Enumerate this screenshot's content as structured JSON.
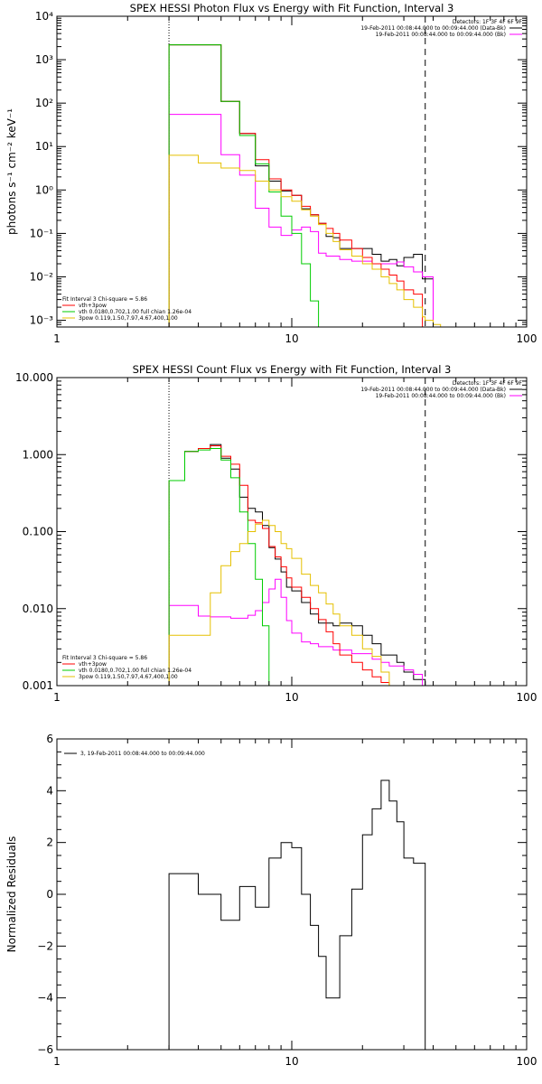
{
  "chart_data": [
    {
      "type": "line",
      "title": "SPEX HESSI Photon Flux vs Energy with Fit Function, Interval 3",
      "ylabel": "photons s⁻¹ cm⁻² keV⁻¹",
      "xlabel": "",
      "xscale": "log",
      "yscale": "log",
      "xlim": [
        1,
        100
      ],
      "ylim": [
        0.0007,
        10000
      ],
      "x_ticks": [
        1,
        10,
        100
      ],
      "x_tick_labels": [
        "1",
        "10",
        "100"
      ],
      "y_ticks": [
        0.001,
        0.01,
        0.1,
        1,
        10,
        100,
        1000,
        10000
      ],
      "y_tick_labels": [
        "10⁻³",
        "10⁻²",
        "10⁻¹",
        "10⁰",
        "10¹",
        "10²",
        "10³",
        "10⁴"
      ],
      "grid": false,
      "vlines": [
        {
          "x": 3.0,
          "style": "dotted"
        },
        {
          "x": 37.0,
          "style": "dashed"
        }
      ],
      "legend_top": {
        "placement": "top-right",
        "header": "Detectors: 1F 3F 4F 6F 9F",
        "entries": [
          {
            "label": "19-Feb-2011 00:08:44.000 to 00:09:44.000 (Data-Bk)",
            "color": "#000000"
          },
          {
            "label": "19-Feb-2011 00:08:44.000 to 00:09:44.000 (Bk)",
            "color": "#ff00ff"
          }
        ]
      },
      "legend_bottom": {
        "placement": "bottom-left",
        "header": "Fit Interval 3   Chi-square = 5.86",
        "entries": [
          {
            "label": "vth+3pow",
            "color": "#ff0000"
          },
          {
            "label": "vth 0.0180,0.702,1.00  full chian 1.26e-04",
            "color": "#00cc00"
          },
          {
            "label": "3pow 0.119,1.50,7.97,4.67,400,1.00",
            "color": "#e5c000"
          }
        ]
      },
      "bin_edges": [
        3.0,
        3.5,
        4.0,
        4.5,
        5.0,
        5.5,
        6.0,
        6.5,
        7.0,
        7.5,
        8.0,
        8.5,
        9.0,
        9.5,
        10.0,
        11.0,
        12.0,
        13.0,
        14.0,
        15.0,
        16.0,
        18.0,
        20.0,
        22.0,
        24.0,
        26.0,
        28.0,
        30.0,
        33.0,
        36.0,
        37.0,
        40.0,
        43.0
      ],
      "series": [
        {
          "name": "Data-Bk",
          "color": "#000000",
          "values": [
            2200,
            2200,
            2200,
            2200,
            110,
            110,
            20,
            20,
            3.6,
            3.6,
            1.6,
            1.6,
            0.95,
            0.95,
            0.75,
            0.37,
            0.27,
            0.17,
            0.085,
            0.08,
            0.045,
            0.045,
            0.045,
            0.033,
            0.023,
            0.025,
            0.018,
            0.028,
            0.033,
            0.009,
            0.009,
            null
          ]
        },
        {
          "name": "Bk",
          "color": "#ff00ff",
          "values": [
            55,
            55,
            55,
            55,
            6.5,
            6.5,
            2.2,
            2.2,
            0.38,
            0.38,
            0.14,
            0.14,
            0.09,
            0.09,
            0.12,
            0.14,
            0.11,
            0.035,
            0.03,
            0.03,
            0.025,
            0.023,
            0.023,
            0.02,
            0.02,
            0.02,
            0.022,
            0.017,
            0.013,
            0.01,
            0.01,
            null
          ]
        },
        {
          "name": "vth+3pow",
          "color": "#ff0000",
          "values": [
            2200,
            2200,
            2200,
            2200,
            110,
            110,
            20,
            20,
            5,
            5,
            1.8,
            1.8,
            1.0,
            1.0,
            0.75,
            0.42,
            0.27,
            0.17,
            0.13,
            0.1,
            0.07,
            0.045,
            0.028,
            0.02,
            0.015,
            0.011,
            0.008,
            0.005,
            0.004,
            null,
            null,
            null
          ]
        },
        {
          "name": "vth",
          "color": "#00cc00",
          "values": [
            2200,
            2200,
            2200,
            2200,
            110,
            110,
            18,
            18,
            4,
            4,
            0.9,
            0.9,
            0.25,
            0.25,
            0.1,
            0.02,
            0.0028,
            0.0006,
            null,
            null,
            null,
            null,
            null,
            null,
            null,
            null,
            null,
            null,
            null,
            null,
            null,
            null
          ]
        },
        {
          "name": "3pow",
          "color": "#e5c000",
          "values": [
            6.3,
            6.3,
            4.2,
            4.2,
            3.2,
            3.2,
            2.8,
            2.8,
            1.6,
            1.6,
            1.0,
            1.0,
            0.7,
            0.7,
            0.55,
            0.35,
            0.25,
            0.16,
            0.1,
            0.065,
            0.042,
            0.03,
            0.02,
            0.015,
            0.01,
            0.007,
            0.005,
            0.003,
            0.002,
            0.0012,
            0.001,
            0.0008
          ]
        }
      ]
    },
    {
      "type": "line",
      "title": "SPEX HESSI Count Flux vs Energy with Fit Function, Interval 3",
      "xlabel": "",
      "ylabel": "",
      "xscale": "log",
      "yscale": "log",
      "xlim": [
        1,
        100
      ],
      "ylim": [
        0.001,
        10
      ],
      "x_ticks": [
        1,
        10,
        100
      ],
      "x_tick_labels": [
        "1",
        "10",
        "100"
      ],
      "y_ticks": [
        0.001,
        0.01,
        0.1,
        1,
        10
      ],
      "y_tick_labels": [
        "0.001",
        "0.010",
        "0.100",
        "1.000",
        "10.000"
      ],
      "grid": false,
      "vlines": [
        {
          "x": 3.0,
          "style": "dotted"
        },
        {
          "x": 37.0,
          "style": "dashed"
        }
      ],
      "legend_top": {
        "placement": "top-right",
        "header": "Detectors: 1F 3F 4F 6F 9F",
        "entries": [
          {
            "label": "19-Feb-2011 00:08:44.000 to 00:09:44.000 (Data-Bk)",
            "color": "#000000"
          },
          {
            "label": "19-Feb-2011 00:08:44.000 to 00:09:44.000 (Bk)",
            "color": "#ff00ff"
          }
        ]
      },
      "legend_bottom": {
        "placement": "bottom-left",
        "header": "Fit Interval 3   Chi-square = 5.86",
        "entries": [
          {
            "label": "vth+3pow",
            "color": "#ff0000"
          },
          {
            "label": "vth 0.0180,0.702,1.00  full chian 1.26e-04",
            "color": "#00cc00"
          },
          {
            "label": "3pow 0.119,1.50,7.97,4.67,400,1.00",
            "color": "#e5c000"
          }
        ]
      },
      "bin_edges": [
        3.0,
        3.5,
        4.0,
        4.5,
        5.0,
        5.5,
        6.0,
        6.5,
        7.0,
        7.5,
        8.0,
        8.5,
        9.0,
        9.5,
        10.0,
        11.0,
        12.0,
        13.0,
        14.0,
        15.0,
        16.0,
        18.0,
        20.0,
        22.0,
        24.0,
        26.0,
        28.0,
        30.0,
        33.0,
        36.0,
        37.0,
        40.0,
        43.0
      ],
      "series": [
        {
          "name": "Data-Bk",
          "color": "#000000",
          "values": [
            0.46,
            1.1,
            1.2,
            1.35,
            0.9,
            0.65,
            0.28,
            0.2,
            0.18,
            0.12,
            0.062,
            0.044,
            0.03,
            0.019,
            0.017,
            0.012,
            0.0085,
            0.0065,
            0.0065,
            0.006,
            0.0065,
            0.006,
            0.0045,
            0.0035,
            0.0025,
            0.0025,
            0.002,
            0.0015,
            0.0012,
            0.0012,
            null,
            null
          ]
        },
        {
          "name": "Bk",
          "color": "#ff00ff",
          "values": [
            0.011,
            0.011,
            0.008,
            0.0078,
            0.0078,
            0.0075,
            0.0075,
            0.0082,
            0.0094,
            0.012,
            0.018,
            0.024,
            0.014,
            0.007,
            0.0048,
            0.0037,
            0.0035,
            0.0032,
            0.0032,
            0.0029,
            0.0029,
            0.0026,
            0.0026,
            0.0022,
            0.002,
            0.0018,
            0.0018,
            0.0016,
            0.0014,
            0.001,
            null,
            null
          ]
        },
        {
          "name": "vth+3pow",
          "color": "#ff0000",
          "values": [
            0.46,
            1.1,
            1.2,
            1.3,
            0.95,
            0.75,
            0.4,
            0.14,
            0.13,
            0.11,
            0.064,
            0.047,
            0.035,
            0.025,
            0.019,
            0.014,
            0.01,
            0.0072,
            0.005,
            0.0035,
            0.0025,
            0.002,
            0.0016,
            0.0013,
            0.0011,
            null,
            null,
            null,
            null,
            null,
            null,
            null
          ]
        },
        {
          "name": "vth",
          "color": "#00cc00",
          "values": [
            0.46,
            1.1,
            1.15,
            1.2,
            0.85,
            0.5,
            0.18,
            0.07,
            0.024,
            0.006,
            0.0008,
            null,
            null,
            null,
            null,
            null,
            null,
            null,
            null,
            null,
            null,
            null,
            null,
            null,
            null,
            null,
            null,
            null,
            null,
            null,
            null,
            null
          ]
        },
        {
          "name": "3pow",
          "color": "#e5c000",
          "values": [
            0.0045,
            0.0045,
            0.0045,
            0.016,
            0.036,
            0.055,
            0.07,
            0.1,
            0.125,
            0.14,
            0.12,
            0.1,
            0.07,
            0.06,
            0.045,
            0.028,
            0.02,
            0.016,
            0.0115,
            0.0085,
            0.006,
            0.0045,
            0.003,
            0.0024,
            0.0015,
            0.001,
            0.0008,
            null,
            null,
            null,
            null,
            null
          ]
        }
      ]
    },
    {
      "type": "line",
      "title": "",
      "xlabel": "",
      "ylabel": "Normalized Residuals",
      "xscale": "log",
      "yscale": "linear",
      "xlim": [
        1,
        100
      ],
      "ylim": [
        -6,
        6
      ],
      "x_ticks": [
        1,
        10,
        100
      ],
      "x_tick_labels": [
        "1",
        "10",
        "100"
      ],
      "y_ticks": [
        -6,
        -4,
        -2,
        0,
        2,
        4,
        6
      ],
      "y_tick_labels": [
        "−6",
        "−4",
        "−2",
        "0",
        "2",
        "4",
        "6"
      ],
      "grid": false,
      "legend": {
        "placement": "top-left",
        "entries": [
          {
            "label": "3, 19-Feb-2011 00:08:44.000 to 00:09:44.000",
            "color": "#000000"
          }
        ]
      },
      "bin_edges": [
        3.0,
        3.5,
        4.0,
        4.5,
        5.0,
        5.5,
        6.0,
        6.5,
        7.0,
        7.5,
        8.0,
        8.5,
        9.0,
        9.5,
        10.0,
        11.0,
        12.0,
        13.0,
        14.0,
        15.0,
        16.0,
        18.0,
        20.0,
        22.0,
        24.0,
        26.0,
        28.0,
        30.0,
        33.0,
        36.0,
        37.0
      ],
      "series": [
        {
          "name": "3, 19-Feb-2011 00:08:44.000 to 00:09:44.000",
          "color": "#000000",
          "values": [
            0.8,
            0.8,
            0.0,
            0.0,
            -1.0,
            -1.0,
            0.3,
            0.3,
            -0.5,
            -0.5,
            1.4,
            1.4,
            2.0,
            2.0,
            1.8,
            0.0,
            -1.2,
            -2.4,
            -4.0,
            -4.0,
            -1.6,
            0.2,
            2.3,
            3.3,
            4.4,
            3.6,
            2.8,
            1.4,
            1.2,
            1.2
          ]
        }
      ]
    }
  ]
}
